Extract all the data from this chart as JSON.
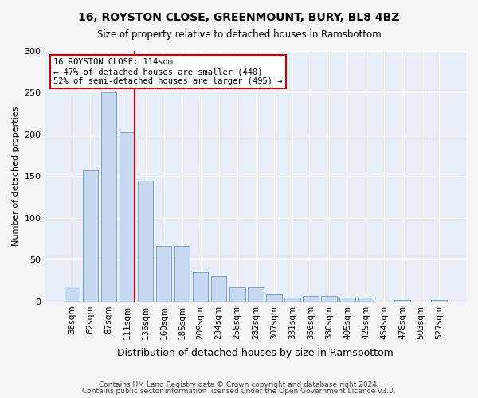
{
  "title1": "16, ROYSTON CLOSE, GREENMOUNT, BURY, BL8 4BZ",
  "title2": "Size of property relative to detached houses in Ramsbottom",
  "xlabel": "Distribution of detached houses by size in Ramsbottom",
  "ylabel": "Number of detached properties",
  "categories": [
    "38sqm",
    "62sqm",
    "87sqm",
    "111sqm",
    "136sqm",
    "160sqm",
    "185sqm",
    "209sqm",
    "234sqm",
    "258sqm",
    "282sqm",
    "307sqm",
    "331sqm",
    "356sqm",
    "380sqm",
    "405sqm",
    "429sqm",
    "454sqm",
    "478sqm",
    "503sqm",
    "527sqm"
  ],
  "values": [
    18,
    157,
    250,
    203,
    145,
    67,
    67,
    35,
    30,
    17,
    17,
    9,
    5,
    7,
    7,
    5,
    5,
    0,
    2,
    0,
    2
  ],
  "bar_color": "#c6d9f0",
  "bar_edge_color": "#7aa6cc",
  "vline_x": 3,
  "vline_color": "#cc0000",
  "annotation_text": "16 ROYSTON CLOSE: 114sqm\n← 47% of detached houses are smaller (440)\n52% of semi-detached houses are larger (495) →",
  "annotation_box_color": "#ffffff",
  "annotation_box_edge": "#cc0000",
  "ylim": [
    0,
    300
  ],
  "yticks": [
    0,
    50,
    100,
    150,
    200,
    250,
    300
  ],
  "footer1": "Contains HM Land Registry data © Crown copyright and database right 2024.",
  "footer2": "Contains public sector information licensed under the Open Government Licence v3.0.",
  "bg_color": "#e8eef7",
  "plot_bg_color": "#e8eef7"
}
